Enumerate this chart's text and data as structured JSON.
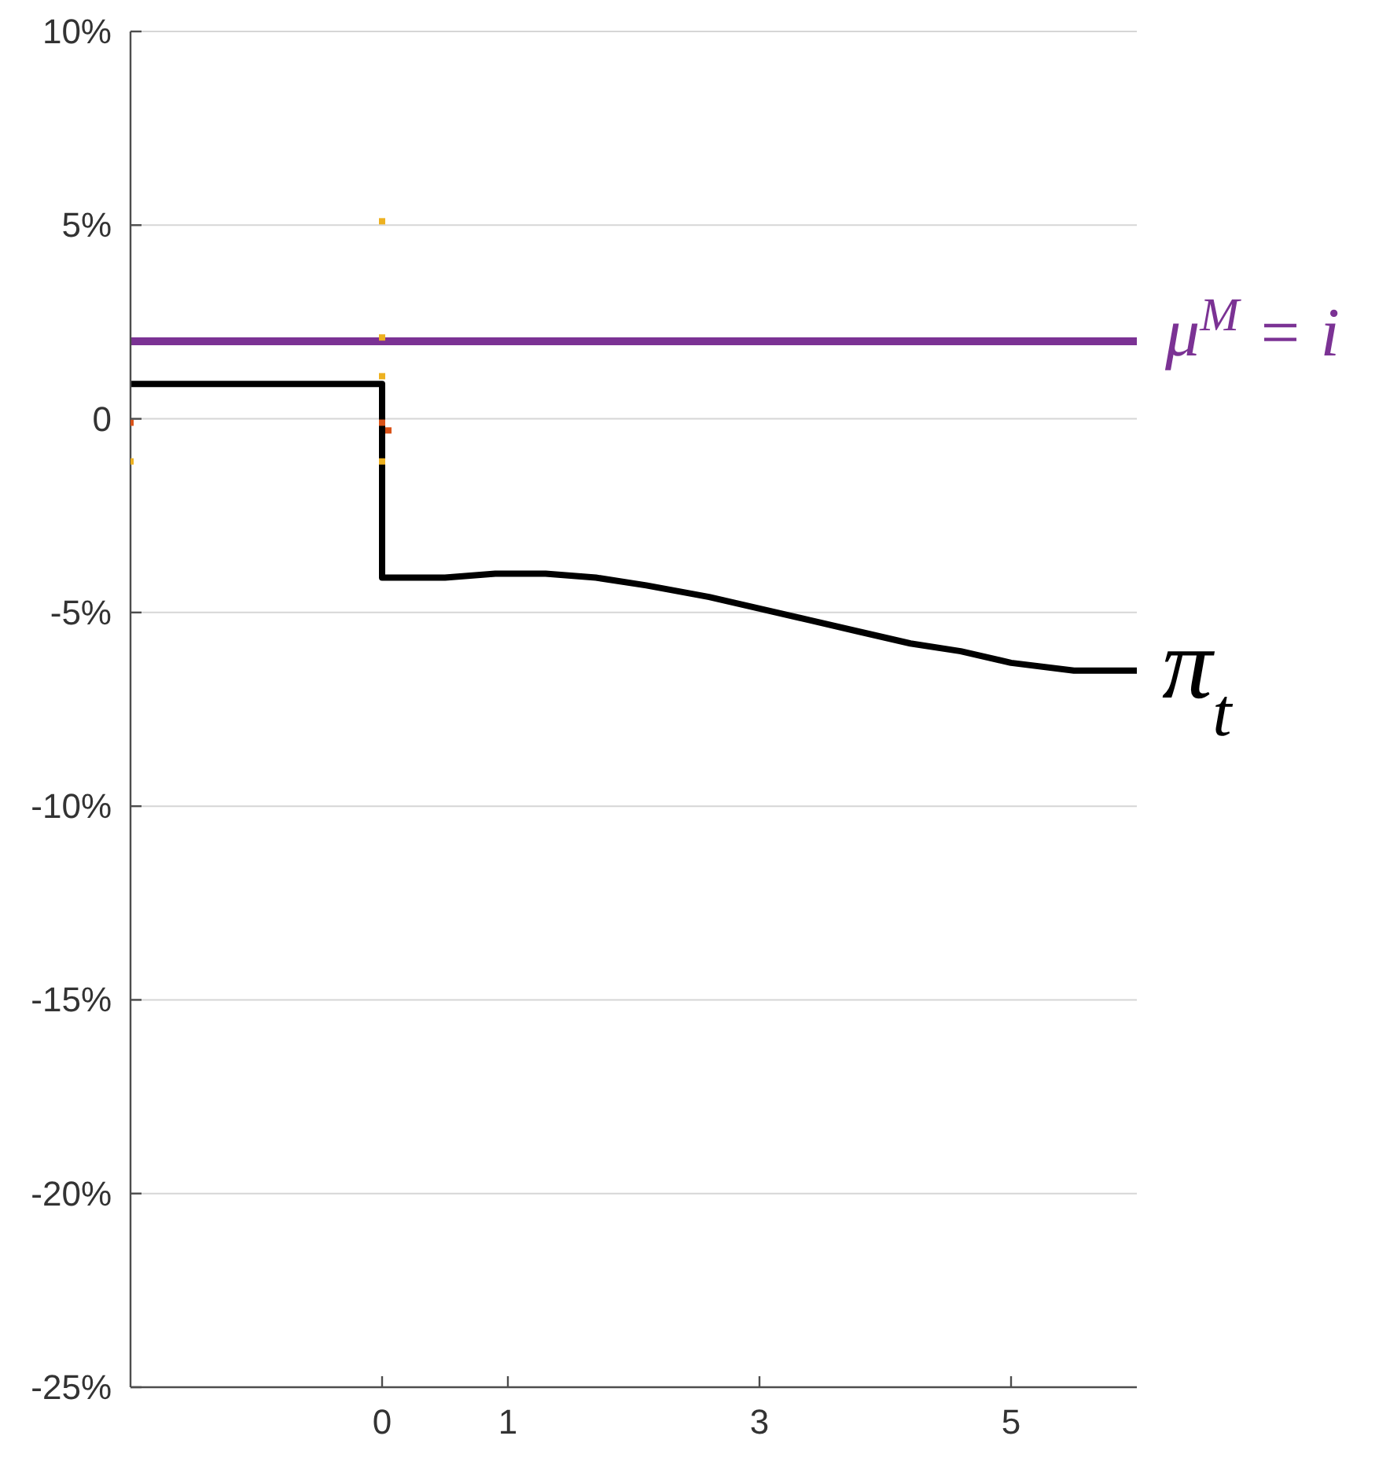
{
  "chart_data": {
    "type": "line",
    "series": [
      {
        "name": "μ$^{M}$ = i",
        "type": "line",
        "color": "#7b3294",
        "x": [
          -2,
          6
        ],
        "values": [
          2,
          2
        ]
      },
      {
        "name": "π$_{t}$",
        "type": "line",
        "color": "#000000",
        "x": [
          -2,
          0,
          0,
          0.5,
          0.9,
          1.3,
          1.7,
          2.1,
          2.6,
          3,
          3.4,
          3.8,
          4.2,
          4.6,
          5,
          5.5,
          6
        ],
        "values": [
          0.9,
          0.9,
          -4.1,
          -4.1,
          -4,
          -4,
          -4.1,
          -4.3,
          -4.6,
          -4.9,
          -5.2,
          -5.5,
          -5.8,
          -6,
          -6.3,
          -6.5,
          -6.5
        ]
      },
      {
        "type": "scatter",
        "marker": "square",
        "color": "#edb120",
        "x": [
          -2,
          0,
          0,
          0,
          0
        ],
        "values": [
          -1.1,
          5.1,
          2.1,
          1.1,
          -1.1
        ]
      },
      {
        "type": "scatter",
        "marker": "square",
        "color": "#d95319",
        "x": [
          -2,
          0,
          0.05
        ],
        "values": [
          -0.1,
          -0.1,
          -0.3
        ]
      }
    ],
    "xlim": [
      -2,
      6
    ],
    "xticks": [
      0,
      1,
      3,
      5
    ],
    "ylim": [
      -25,
      10
    ],
    "yticks": [
      {
        "value": -25,
        "label": "-25%"
      },
      {
        "value": -20,
        "label": "-20%"
      },
      {
        "value": -15,
        "label": "-15%"
      },
      {
        "value": -10,
        "label": "-10%"
      },
      {
        "value": -5,
        "label": "-5%"
      },
      0,
      {
        "value": 5,
        "label": "5%"
      },
      {
        "value": 10,
        "label": "10%"
      }
    ],
    "grid": "y"
  }
}
